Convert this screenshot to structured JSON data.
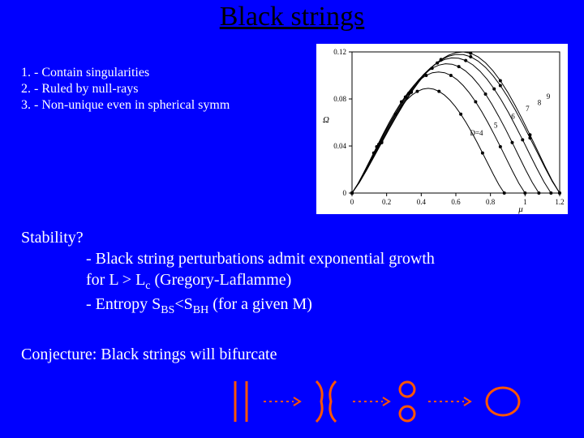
{
  "title": "Black strings",
  "list": {
    "item1": "1. - Contain singularities",
    "item2": "2. - Ruled by null-rays",
    "item3": "3. - Non-unique even in spherical symm"
  },
  "stability": {
    "heading": "Stability?",
    "line1": "- Black string perturbations admit exponential growth",
    "line2_pre": "  for L > L",
    "line2_sub": "c",
    "line2_post": " (Gregory-Laflamme)",
    "line3_pre": "- Entropy S",
    "line3_sub1": "BS",
    "line3_mid": "<S",
    "line3_sub2": "BH",
    "line3_post": " (for a given M)"
  },
  "conjecture": "Conjecture: Black strings will bifurcate",
  "chart": {
    "ylabel": "Ω",
    "xlabel": "μ",
    "xlim": [
      0,
      1.2
    ],
    "ylim": [
      0,
      0.12
    ],
    "xticks": [
      "0",
      "0.2",
      "0.4",
      "0.6",
      "0.8",
      "1",
      "1.2"
    ],
    "yticks": [
      "0",
      "0.04",
      "0.08",
      "0.12"
    ],
    "tick_fontsize": 9,
    "label_fontsize": 11,
    "background_color": "#ffffff",
    "axis_color": "#000000",
    "curves": [
      {
        "label": "4",
        "peak_x": 0.44,
        "peak_y": 0.089,
        "end_x": 0.88,
        "color": "#000000"
      },
      {
        "label": "5",
        "peak_x": 0.5,
        "peak_y": 0.103,
        "end_x": 1.0,
        "color": "#000000"
      },
      {
        "label": "6",
        "peak_x": 0.55,
        "peak_y": 0.11,
        "end_x": 1.08,
        "color": "#000000"
      },
      {
        "label": "7",
        "peak_x": 0.59,
        "peak_y": 0.115,
        "end_x": 1.15,
        "color": "#000000"
      },
      {
        "label": "8",
        "peak_x": 0.62,
        "peak_y": 0.118,
        "end_x": 1.2,
        "color": "#000000"
      },
      {
        "label": "9",
        "peak_x": 0.64,
        "peak_y": 0.12,
        "end_x": 1.2,
        "color": "#000000"
      }
    ],
    "curve_label_D": "D=4",
    "marker_style": "circle",
    "marker_size": 2.0,
    "line_width": 1
  },
  "diagram": {
    "stroke": "#ff5500",
    "stroke_width": 3,
    "arrow_dash": "3,4"
  }
}
